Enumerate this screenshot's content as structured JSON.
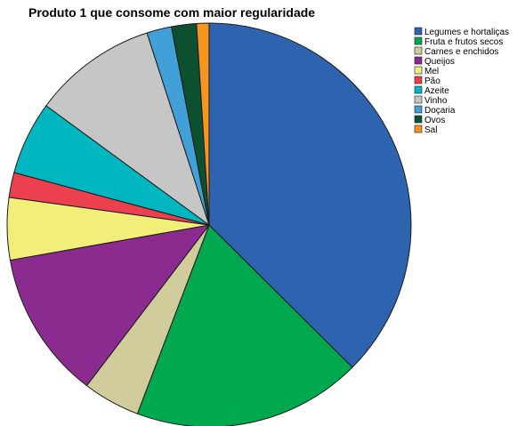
{
  "chart_data": {
    "type": "pie",
    "title": "Produto 1 que consome com maior regularidade",
    "legend_position": "top-right",
    "start_angle_deg": 0,
    "direction": "clockwise",
    "slices": [
      {
        "label": "Legumes e hortaliças",
        "value": 37.6,
        "color": "#2e63b0"
      },
      {
        "label": "Fruta e frutos secos",
        "value": 18.4,
        "color": "#00a84f"
      },
      {
        "label": "Carnes e enchidos",
        "value": 4.6,
        "color": "#d0cc9c"
      },
      {
        "label": "Queijos",
        "value": 11.9,
        "color": "#8b2b8f"
      },
      {
        "label": "Mel",
        "value": 5.0,
        "color": "#f2ee7a"
      },
      {
        "label": "Pão",
        "value": 2.0,
        "color": "#ec3f4f"
      },
      {
        "label": "Azeite",
        "value": 5.9,
        "color": "#00b7c0"
      },
      {
        "label": "Vinho",
        "value": 10.0,
        "color": "#c6c6c6"
      },
      {
        "label": "Doçaria",
        "value": 2.0,
        "color": "#42a0d8"
      },
      {
        "label": "Ovos",
        "value": 2.0,
        "color": "#0c5030"
      },
      {
        "label": "Sal",
        "value": 1.0,
        "color": "#f7941d"
      }
    ]
  }
}
